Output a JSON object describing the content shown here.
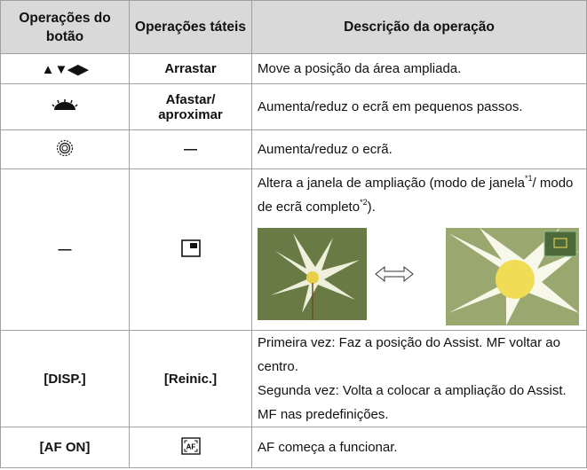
{
  "table": {
    "header": [
      "Operações do botão",
      "Operações táteis",
      "Descrição da operação"
    ],
    "rows": [
      {
        "button": "▲▼◀▶",
        "touch": "Arrastar",
        "description": [
          "Move a posição da área ampliada."
        ]
      },
      {
        "touch": "Afastar/ aproximar",
        "description": [
          "Aumenta/reduz o ecrã em pequenos passos."
        ]
      },
      {
        "touch": "—",
        "description": [
          "Aumenta/reduz o ecrã."
        ]
      },
      {
        "button": "—",
        "description": [
          "Altera a janela de ampliação (modo de janela",
          "*1",
          "/ modo de ecrã completo",
          "*2",
          ")."
        ]
      },
      {
        "button": "[DISP.]",
        "touch": "[Reinic.]",
        "description": [
          "Primeira vez: Faz a posição do Assist. MF voltar ao centro.",
          "Segunda vez: Volta a colocar a ampliação do Assist. MF nas predefinições."
        ]
      },
      {
        "button": "[AF ON]",
        "description": [
          "AF começa a funcionar."
        ]
      }
    ]
  }
}
